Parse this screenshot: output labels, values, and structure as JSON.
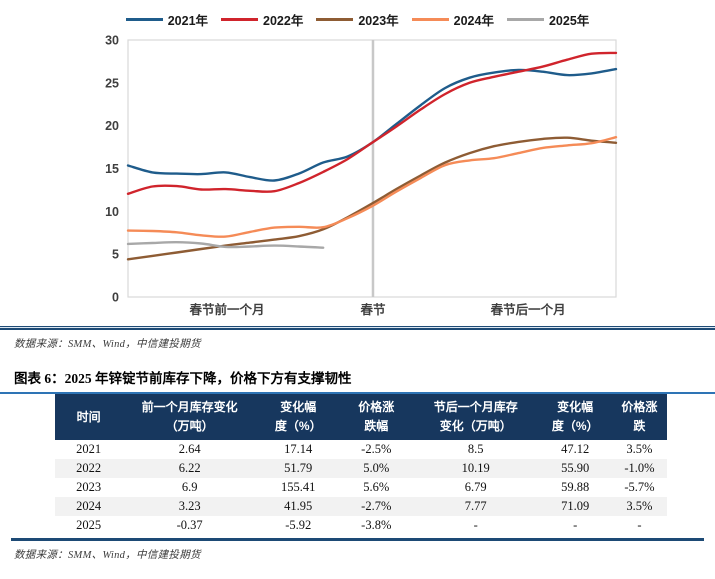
{
  "figure_title": "图表 6：2025 年锌锭节前库存下降，价格下方有支撑韧性",
  "chart_source": "数据来源：SMM、Wind，中信建投期货",
  "table_source": "数据来源：SMM、Wind，中信建投期货",
  "colors": {
    "header_navy": "#17375e",
    "separator_navy": "#1d4a75",
    "title_underline_blue": "#2e74b5",
    "row_stripe": "#f2f2f2",
    "plot_border": "#d9d9d9",
    "festival_line": "#c8c8c8"
  },
  "chart_data": {
    "type": "line",
    "title": "",
    "xlabel": "",
    "ylabel": "",
    "ylim": [
      0,
      30
    ],
    "yticks": [
      0,
      5,
      10,
      15,
      20,
      25,
      30
    ],
    "grid": false,
    "legend_position": "top",
    "x_axis_labels": [
      {
        "label": "春节前一个月",
        "pos": 0.203
      },
      {
        "label": "春节",
        "pos": 0.502
      },
      {
        "label": "春节后一个月",
        "pos": 0.82
      }
    ],
    "festival_line_pos": 0.502,
    "series": [
      {
        "name": "2021年",
        "color": "#1f5c8b",
        "values": [
          15.35,
          14.55,
          14.4,
          14.35,
          14.55,
          14.0,
          13.6,
          14.4,
          15.7,
          16.4,
          18.0,
          20.2,
          22.4,
          24.4,
          25.6,
          26.2,
          26.5,
          26.3,
          25.9,
          26.1,
          26.6
        ]
      },
      {
        "name": "2022年",
        "color": "#d0242c",
        "values": [
          12.05,
          12.9,
          12.95,
          12.55,
          12.6,
          12.4,
          12.35,
          13.3,
          14.6,
          16.1,
          18.0,
          19.9,
          21.9,
          23.7,
          25.0,
          25.7,
          26.3,
          26.9,
          27.7,
          28.4,
          28.5
        ]
      },
      {
        "name": "2023年",
        "color": "#8e5c34",
        "values": [
          4.4,
          4.8,
          5.2,
          5.6,
          6.0,
          6.35,
          6.7,
          7.1,
          7.9,
          9.3,
          10.9,
          12.6,
          14.2,
          15.7,
          16.8,
          17.6,
          18.1,
          18.45,
          18.6,
          18.25,
          18.0
        ]
      },
      {
        "name": "2024年",
        "color": "#f58b57",
        "values": [
          7.75,
          7.7,
          7.55,
          7.2,
          7.05,
          7.6,
          8.1,
          8.2,
          8.15,
          9.2,
          10.6,
          12.3,
          13.9,
          15.4,
          15.95,
          16.2,
          16.8,
          17.4,
          17.7,
          17.95,
          18.65
        ]
      },
      {
        "name": "2025年",
        "color": "#a8a8a8",
        "values": [
          6.2,
          6.3,
          6.4,
          6.25,
          5.85,
          5.9,
          6.0,
          5.9,
          5.75,
          null,
          null,
          null,
          null,
          null,
          null,
          null,
          null,
          null,
          null,
          null,
          null
        ]
      }
    ]
  },
  "table": {
    "headers": [
      "时间",
      "前一个月库存变化\n（万吨）",
      "变化幅\n度（%）",
      "价格涨\n跌幅",
      "节后一个月库存\n变化（万吨）",
      "变化幅\n度（%）",
      "价格涨\n跌"
    ],
    "col_widths": [
      "11%",
      "22%",
      "13.5%",
      "12%",
      "20.5%",
      "12%",
      "9%"
    ],
    "rows": [
      [
        "2021",
        "2.64",
        "17.14",
        "-2.5%",
        "8.5",
        "47.12",
        "3.5%"
      ],
      [
        "2022",
        "6.22",
        "51.79",
        "5.0%",
        "10.19",
        "55.90",
        "-1.0%"
      ],
      [
        "2023",
        "6.9",
        "155.41",
        "5.6%",
        "6.79",
        "59.88",
        "-5.7%"
      ],
      [
        "2024",
        "3.23",
        "41.95",
        "-2.7%",
        "7.77",
        "71.09",
        "3.5%"
      ],
      [
        "2025",
        "-0.37",
        "-5.92",
        "-3.8%",
        "-",
        "-",
        "-"
      ]
    ]
  }
}
